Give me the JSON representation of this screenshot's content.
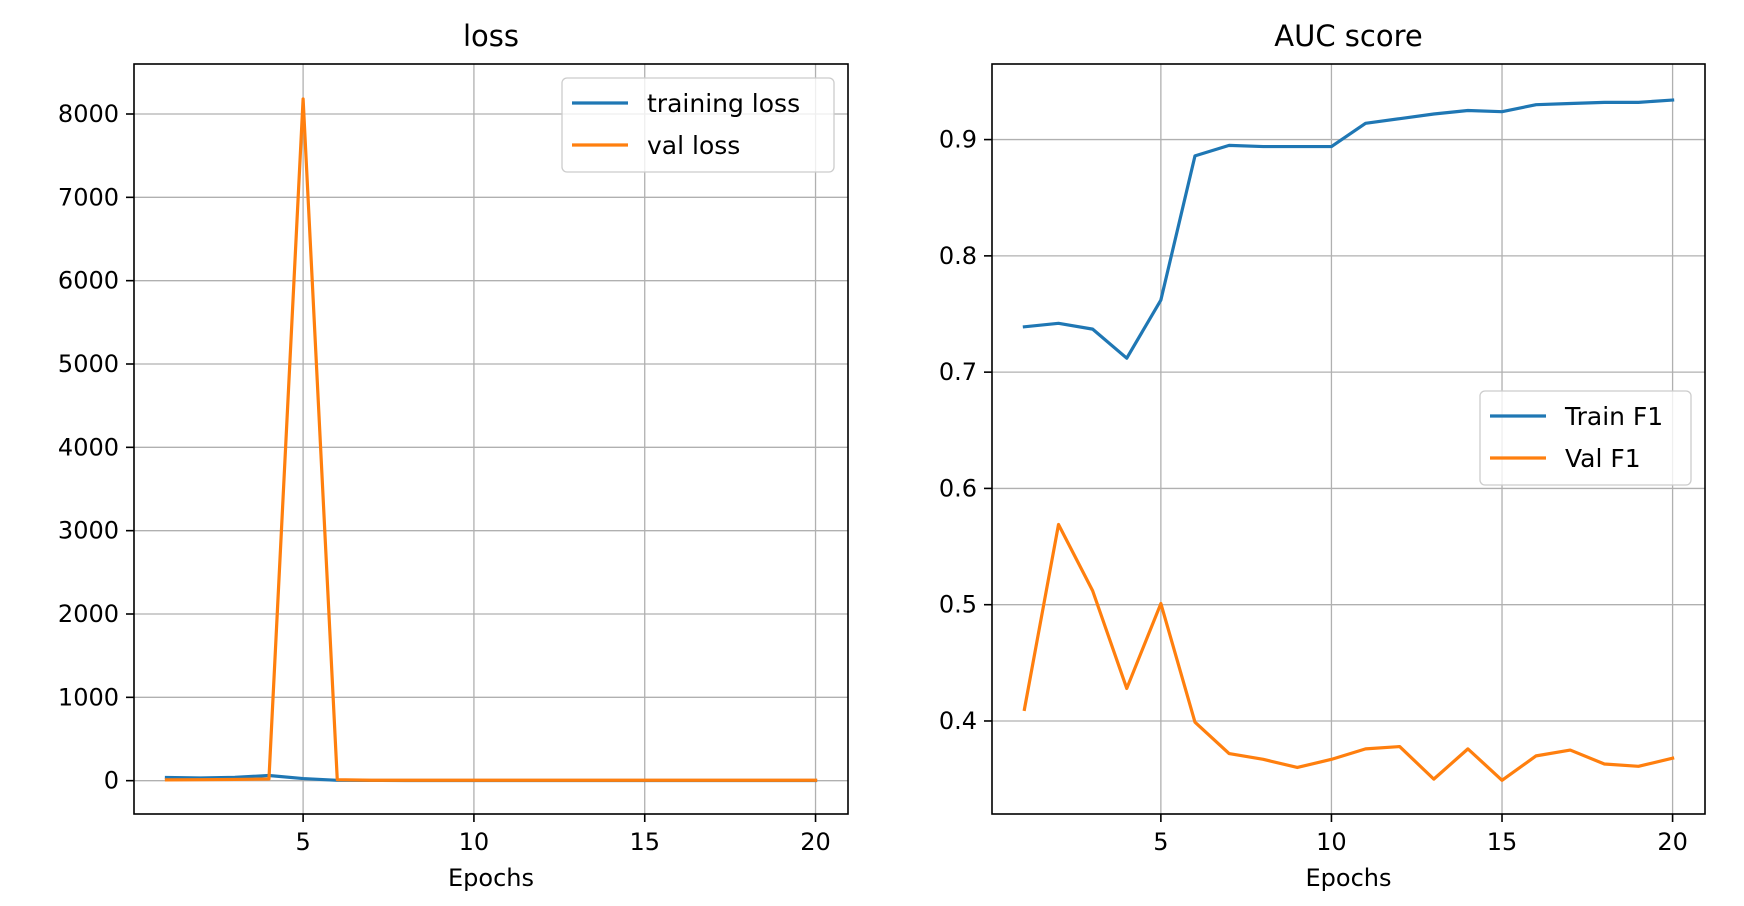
{
  "chart_data": [
    {
      "type": "line",
      "title": "loss",
      "xlabel": "Epochs",
      "ylabel": "",
      "x": [
        1,
        2,
        3,
        4,
        5,
        6,
        7,
        8,
        9,
        10,
        11,
        12,
        13,
        14,
        15,
        16,
        17,
        18,
        19,
        20
      ],
      "xlim": [
        0.05,
        20.95
      ],
      "ylim": [
        -400,
        8600
      ],
      "xticks": [
        5,
        10,
        15,
        20
      ],
      "yticks": [
        0,
        1000,
        2000,
        3000,
        4000,
        5000,
        6000,
        7000,
        8000
      ],
      "grid": true,
      "legend_position": "upper right",
      "series": [
        {
          "name": "training loss",
          "color": "#1f77b4",
          "values": [
            38,
            33,
            40,
            62,
            25,
            4,
            3,
            2,
            2,
            2,
            2,
            2,
            2,
            2,
            2,
            2,
            2,
            2,
            2,
            2
          ]
        },
        {
          "name": "val loss",
          "color": "#ff7f0e",
          "values": [
            10,
            12,
            15,
            20,
            8180,
            12,
            5,
            5,
            5,
            5,
            5,
            5,
            5,
            5,
            5,
            5,
            5,
            5,
            5,
            5
          ]
        }
      ]
    },
    {
      "type": "line",
      "title": "AUC score",
      "xlabel": "Epochs",
      "ylabel": "",
      "x": [
        1,
        2,
        3,
        4,
        5,
        6,
        7,
        8,
        9,
        10,
        11,
        12,
        13,
        14,
        15,
        16,
        17,
        18,
        19,
        20
      ],
      "xlim": [
        0.05,
        20.95
      ],
      "ylim": [
        0.32,
        0.965
      ],
      "xticks": [
        5,
        10,
        15,
        20
      ],
      "yticks": [
        0.4,
        0.5,
        0.6,
        0.7,
        0.8,
        0.9
      ],
      "ytick_labels": [
        "0.4",
        "0.5",
        "0.6",
        "0.7",
        "0.8",
        "0.9"
      ],
      "grid": true,
      "legend_position": "center right",
      "series": [
        {
          "name": "Train F1",
          "color": "#1f77b4",
          "values": [
            0.739,
            0.742,
            0.737,
            0.712,
            0.762,
            0.886,
            0.895,
            0.894,
            0.894,
            0.894,
            0.914,
            0.918,
            0.922,
            0.925,
            0.924,
            0.93,
            0.931,
            0.932,
            0.932,
            0.934
          ]
        },
        {
          "name": "Val F1",
          "color": "#ff7f0e",
          "values": [
            0.41,
            0.569,
            0.512,
            0.428,
            0.501,
            0.399,
            0.372,
            0.367,
            0.36,
            0.367,
            0.376,
            0.378,
            0.35,
            0.376,
            0.349,
            0.37,
            0.375,
            0.363,
            0.361,
            0.368
          ]
        }
      ]
    }
  ]
}
